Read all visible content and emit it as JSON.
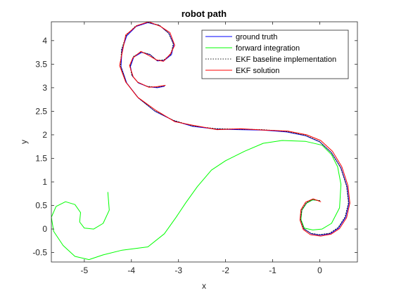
{
  "chart_data": {
    "type": "line",
    "title": "robot path",
    "xlabel": "x",
    "ylabel": "y",
    "xlim": [
      -5.7,
      0.8
    ],
    "ylim": [
      -0.7,
      4.4
    ],
    "xticks": [
      -5,
      -4,
      -3,
      -2,
      -1,
      0
    ],
    "yticks": [
      -0.5,
      0,
      0.5,
      1,
      1.5,
      2,
      2.5,
      3,
      3.5,
      4
    ],
    "xtick_labels": [
      "-5",
      "-4",
      "-3",
      "-2",
      "-1",
      "0"
    ],
    "ytick_labels": [
      "-0.5",
      "0",
      "0.5",
      "1",
      "1.5",
      "2",
      "2.5",
      "3",
      "3.5",
      "4"
    ],
    "legend_position": "top-right",
    "grid": false,
    "series": [
      {
        "name": "ground truth",
        "color": "#0000ff",
        "dash": "solid",
        "points": [
          [
            0,
            0.6
          ],
          [
            -0.15,
            0.62
          ],
          [
            -0.28,
            0.55
          ],
          [
            -0.38,
            0.4
          ],
          [
            -0.4,
            0.2
          ],
          [
            -0.33,
            0.0
          ],
          [
            -0.18,
            -0.1
          ],
          [
            0.0,
            -0.13
          ],
          [
            0.22,
            -0.1
          ],
          [
            0.4,
            0.02
          ],
          [
            0.55,
            0.25
          ],
          [
            0.62,
            0.55
          ],
          [
            0.58,
            0.9
          ],
          [
            0.45,
            1.3
          ],
          [
            0.25,
            1.62
          ],
          [
            0.0,
            1.85
          ],
          [
            -0.3,
            1.98
          ],
          [
            -0.7,
            2.06
          ],
          [
            -1.2,
            2.1
          ],
          [
            -1.7,
            2.11
          ],
          [
            -2.2,
            2.12
          ],
          [
            -2.7,
            2.18
          ],
          [
            -3.1,
            2.3
          ],
          [
            -3.5,
            2.5
          ],
          [
            -3.85,
            2.78
          ],
          [
            -4.1,
            3.1
          ],
          [
            -4.22,
            3.45
          ],
          [
            -4.2,
            3.8
          ],
          [
            -4.1,
            4.1
          ],
          [
            -3.9,
            4.3
          ],
          [
            -3.65,
            4.38
          ],
          [
            -3.4,
            4.32
          ],
          [
            -3.2,
            4.15
          ],
          [
            -3.1,
            3.92
          ],
          [
            -3.15,
            3.7
          ],
          [
            -3.3,
            3.58
          ],
          [
            -3.45,
            3.57
          ],
          [
            -3.6,
            3.7
          ],
          [
            -3.78,
            3.75
          ],
          [
            -3.95,
            3.65
          ],
          [
            -4.02,
            3.45
          ],
          [
            -3.98,
            3.25
          ],
          [
            -3.85,
            3.1
          ],
          [
            -3.65,
            3.02
          ],
          [
            -3.45,
            3.0
          ],
          [
            -3.3,
            3.03
          ]
        ]
      },
      {
        "name": "forward integration",
        "color": "#00ff00",
        "dash": "solid",
        "points": [
          [
            0,
            0.6
          ],
          [
            -0.15,
            0.62
          ],
          [
            -0.28,
            0.55
          ],
          [
            -0.38,
            0.4
          ],
          [
            -0.4,
            0.2
          ],
          [
            -0.33,
            0.02
          ],
          [
            -0.15,
            -0.02
          ],
          [
            0.05,
            0.0
          ],
          [
            0.25,
            0.12
          ],
          [
            0.42,
            0.45
          ],
          [
            0.45,
            0.95
          ],
          [
            0.38,
            1.32
          ],
          [
            0.25,
            1.58
          ],
          [
            0.05,
            1.78
          ],
          [
            -0.3,
            1.86
          ],
          [
            -0.8,
            1.88
          ],
          [
            -1.2,
            1.82
          ],
          [
            -1.6,
            1.65
          ],
          [
            -2.0,
            1.45
          ],
          [
            -2.3,
            1.25
          ],
          [
            -2.6,
            0.9
          ],
          [
            -2.85,
            0.55
          ],
          [
            -3.05,
            0.25
          ],
          [
            -3.3,
            -0.1
          ],
          [
            -3.65,
            -0.38
          ],
          [
            -4.2,
            -0.45
          ],
          [
            -4.6,
            -0.55
          ],
          [
            -4.9,
            -0.65
          ],
          [
            -5.2,
            -0.58
          ],
          [
            -5.45,
            -0.35
          ],
          [
            -5.65,
            -0.05
          ],
          [
            -5.7,
            0.25
          ],
          [
            -5.6,
            0.48
          ],
          [
            -5.4,
            0.58
          ],
          [
            -5.2,
            0.52
          ],
          [
            -5.08,
            0.35
          ],
          [
            -5.1,
            0.15
          ],
          [
            -5.0,
            0.02
          ],
          [
            -4.8,
            0.0
          ],
          [
            -4.6,
            0.12
          ],
          [
            -4.47,
            0.4
          ],
          [
            -4.5,
            0.78
          ]
        ]
      },
      {
        "name": "EKF baseline implementation",
        "color": "#222222",
        "dash": "dotted",
        "points": [
          [
            0,
            0.6
          ],
          [
            -0.15,
            0.63
          ],
          [
            -0.28,
            0.56
          ],
          [
            -0.38,
            0.41
          ],
          [
            -0.41,
            0.21
          ],
          [
            -0.34,
            0.01
          ],
          [
            -0.19,
            -0.09
          ],
          [
            -0.01,
            -0.12
          ],
          [
            0.21,
            -0.09
          ],
          [
            0.39,
            0.03
          ],
          [
            0.54,
            0.26
          ],
          [
            0.61,
            0.56
          ],
          [
            0.57,
            0.91
          ],
          [
            0.44,
            1.31
          ],
          [
            0.24,
            1.63
          ],
          [
            -0.01,
            1.86
          ],
          [
            -0.31,
            1.99
          ],
          [
            -0.71,
            2.07
          ],
          [
            -1.21,
            2.11
          ],
          [
            -1.71,
            2.12
          ],
          [
            -2.21,
            2.13
          ],
          [
            -2.71,
            2.19
          ],
          [
            -3.11,
            2.31
          ],
          [
            -3.51,
            2.51
          ],
          [
            -3.86,
            2.79
          ],
          [
            -4.11,
            3.11
          ],
          [
            -4.23,
            3.46
          ],
          [
            -4.21,
            3.81
          ],
          [
            -4.11,
            4.11
          ],
          [
            -3.91,
            4.31
          ],
          [
            -3.66,
            4.39
          ],
          [
            -3.41,
            4.33
          ],
          [
            -3.21,
            4.16
          ],
          [
            -3.11,
            3.93
          ],
          [
            -3.16,
            3.71
          ],
          [
            -3.31,
            3.59
          ],
          [
            -3.46,
            3.58
          ],
          [
            -3.61,
            3.71
          ],
          [
            -3.79,
            3.76
          ],
          [
            -3.96,
            3.66
          ],
          [
            -4.03,
            3.46
          ],
          [
            -3.99,
            3.26
          ],
          [
            -3.86,
            3.11
          ],
          [
            -3.66,
            3.03
          ],
          [
            -3.46,
            3.01
          ],
          [
            -3.3,
            3.04
          ]
        ]
      },
      {
        "name": "EKF solution",
        "color": "#ff0000",
        "dash": "solid",
        "points": [
          [
            0.02,
            0.58
          ],
          [
            -0.14,
            0.64
          ],
          [
            -0.3,
            0.57
          ],
          [
            -0.4,
            0.41
          ],
          [
            -0.42,
            0.19
          ],
          [
            -0.35,
            -0.01
          ],
          [
            -0.2,
            -0.12
          ],
          [
            0.02,
            -0.15
          ],
          [
            0.24,
            -0.11
          ],
          [
            0.42,
            0.01
          ],
          [
            0.57,
            0.24
          ],
          [
            0.64,
            0.55
          ],
          [
            0.6,
            0.92
          ],
          [
            0.47,
            1.32
          ],
          [
            0.27,
            1.65
          ],
          [
            0.02,
            1.88
          ],
          [
            -0.28,
            2.0
          ],
          [
            -0.68,
            2.08
          ],
          [
            -1.18,
            2.1
          ],
          [
            -1.68,
            2.13
          ],
          [
            -2.18,
            2.11
          ],
          [
            -2.68,
            2.2
          ],
          [
            -3.08,
            2.28
          ],
          [
            -3.48,
            2.52
          ],
          [
            -3.87,
            2.8
          ],
          [
            -4.12,
            3.12
          ],
          [
            -4.25,
            3.47
          ],
          [
            -4.18,
            3.82
          ],
          [
            -4.12,
            4.12
          ],
          [
            -3.88,
            4.32
          ],
          [
            -3.63,
            4.4
          ],
          [
            -3.38,
            4.3
          ],
          [
            -3.18,
            4.17
          ],
          [
            -3.08,
            3.9
          ],
          [
            -3.17,
            3.72
          ],
          [
            -3.32,
            3.56
          ],
          [
            -3.47,
            3.59
          ],
          [
            -3.62,
            3.68
          ],
          [
            -3.8,
            3.77
          ],
          [
            -3.97,
            3.63
          ],
          [
            -4.04,
            3.47
          ],
          [
            -3.96,
            3.23
          ],
          [
            -3.87,
            3.12
          ],
          [
            -3.63,
            3.01
          ],
          [
            -3.47,
            3.02
          ],
          [
            -3.28,
            3.05
          ]
        ]
      }
    ]
  }
}
